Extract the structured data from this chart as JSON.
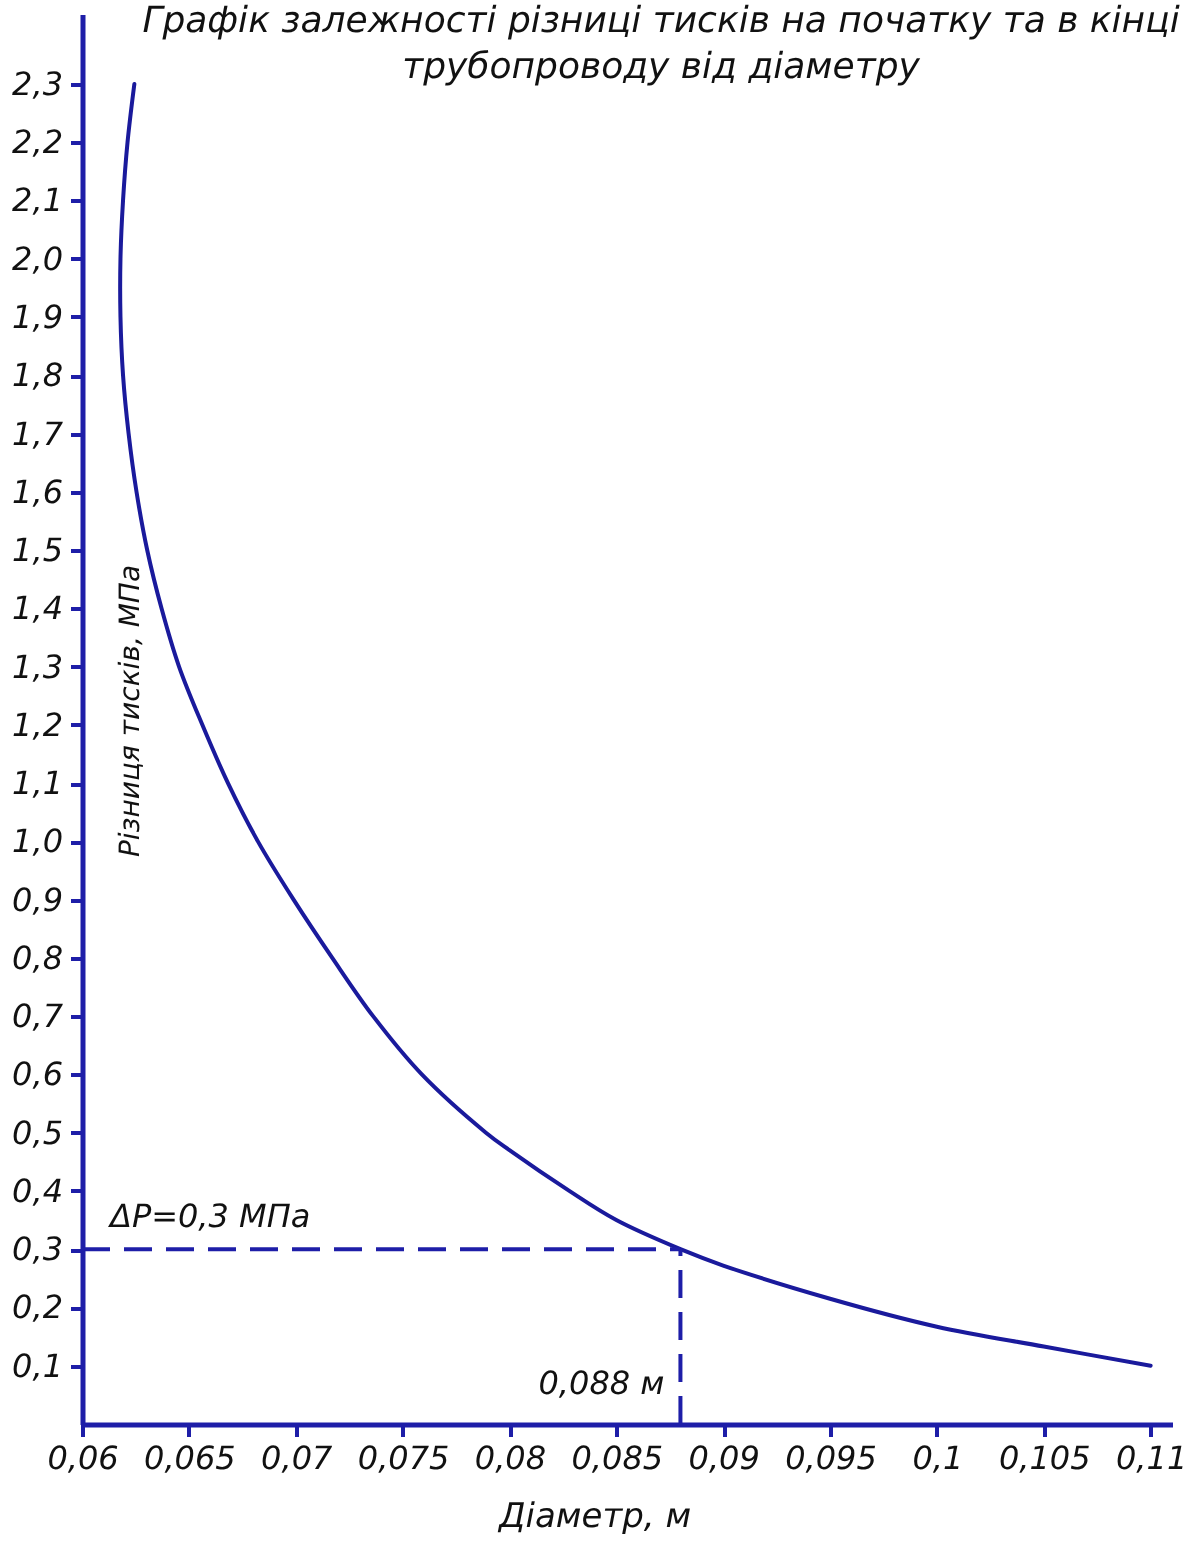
{
  "chart_data": {
    "type": "line",
    "title": "Графік залежності різниці тисків на початку та в кінці\nтрубопроводу від діаметру",
    "xlabel": "Діаметр, м",
    "ylabel": "Різниця тисків, МПа",
    "x": [
      0.06245,
      0.06213,
      0.06192,
      0.0618,
      0.0618,
      0.06192,
      0.06218,
      0.06255,
      0.06305,
      0.06372,
      0.06454,
      0.06563,
      0.06683,
      0.06823,
      0.0699,
      0.07171,
      0.07362,
      0.0759,
      0.0789,
      0.08,
      0.0828,
      0.085,
      0.088,
      0.09,
      0.095,
      0.1,
      0.105,
      0.11
    ],
    "series": [
      {
        "color": "#1a1a9c",
        "values": [
          2.3,
          2.2,
          2.1,
          2.0,
          1.9,
          1.8,
          1.7,
          1.6,
          1.5,
          1.4,
          1.3,
          1.2,
          1.1,
          1.0,
          0.9,
          0.8,
          0.7,
          0.6,
          0.5,
          0.47,
          0.4,
          0.35,
          0.3,
          0.272,
          0.215,
          0.167,
          0.133,
          0.1
        ]
      }
    ],
    "xlim": [
      0.06,
      0.111
    ],
    "ylim": [
      0,
      2.42
    ],
    "xticks": [
      {
        "value": 0.06,
        "label": "0,06"
      },
      {
        "value": 0.065,
        "label": "0,065"
      },
      {
        "value": 0.07,
        "label": "0,07"
      },
      {
        "value": 0.075,
        "label": "0,075"
      },
      {
        "value": 0.08,
        "label": "0,08"
      },
      {
        "value": 0.085,
        "label": "0,085"
      },
      {
        "value": 0.09,
        "label": "0,09"
      },
      {
        "value": 0.095,
        "label": "0,095"
      },
      {
        "value": 0.1,
        "label": "0,1"
      },
      {
        "value": 0.105,
        "label": "0,105"
      },
      {
        "value": 0.11,
        "label": "0,11"
      }
    ],
    "yticks": [
      {
        "value": 0.1,
        "label": "0,1"
      },
      {
        "value": 0.2,
        "label": "0,2"
      },
      {
        "value": 0.3,
        "label": "0,3"
      },
      {
        "value": 0.4,
        "label": "0,4"
      },
      {
        "value": 0.5,
        "label": "0,5"
      },
      {
        "value": 0.6,
        "label": "0,6"
      },
      {
        "value": 0.7,
        "label": "0,7"
      },
      {
        "value": 0.8,
        "label": "0,8"
      },
      {
        "value": 0.9,
        "label": "0,9"
      },
      {
        "value": 1.0,
        "label": "1,0"
      },
      {
        "value": 1.1,
        "label": "1,1"
      },
      {
        "value": 1.2,
        "label": "1,2"
      },
      {
        "value": 1.3,
        "label": "1,3"
      },
      {
        "value": 1.4,
        "label": "1,4"
      },
      {
        "value": 1.5,
        "label": "1,5"
      },
      {
        "value": 1.6,
        "label": "1,6"
      },
      {
        "value": 1.7,
        "label": "1,7"
      },
      {
        "value": 1.8,
        "label": "1,8"
      },
      {
        "value": 1.9,
        "label": "1,9"
      },
      {
        "value": 2.0,
        "label": "2,0"
      },
      {
        "value": 2.1,
        "label": "2,1"
      },
      {
        "value": 2.2,
        "label": "2,2"
      },
      {
        "value": 2.3,
        "label": "2,3"
      }
    ],
    "ref_lines": [
      {
        "axis": "y",
        "value": 0.3,
        "label": "ΔP=0,3 МПа",
        "color": "#1e1ea8",
        "line_style": "dashed"
      },
      {
        "axis": "x",
        "value": 0.088,
        "label": "0,088 м",
        "color": "#1e1ea8",
        "line_style": "dashed"
      }
    ],
    "grid": false
  }
}
